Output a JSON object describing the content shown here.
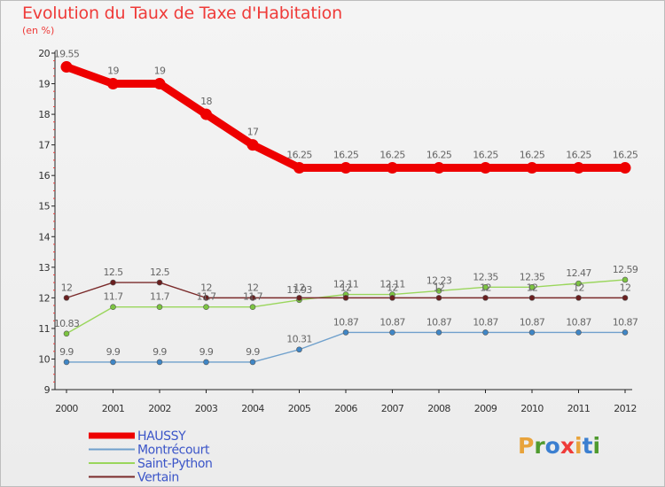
{
  "title": "Evolution du Taux de Taxe d'Habitation",
  "unit": "(en %)",
  "logo": {
    "text": "Proxiti",
    "colors": [
      "#e8a33b",
      "#4f9a2e",
      "#3b7fd0",
      "#ef3b39",
      "#e8a33b",
      "#3b7fd0",
      "#4f9a2e"
    ]
  },
  "chart_data": {
    "type": "line",
    "title": "Evolution du Taux de Taxe d'Habitation",
    "ylabel": "(en %)",
    "xlabel": "",
    "ylim": [
      9,
      20
    ],
    "y_ticks": [
      9,
      10,
      11,
      12,
      13,
      14,
      15,
      16,
      17,
      18,
      19,
      20
    ],
    "x": [
      "2000",
      "2001",
      "2002",
      "2003",
      "2004",
      "2005",
      "2006",
      "2007",
      "2008",
      "2009",
      "2010",
      "2011",
      "2012"
    ],
    "grid": false,
    "legend_position": "bottom-left",
    "series": [
      {
        "name": "HAUSSY",
        "color": "#ee0000",
        "emphasis": true,
        "values": [
          19.55,
          19,
          19,
          18,
          17,
          16.25,
          16.25,
          16.25,
          16.25,
          16.25,
          16.25,
          16.25,
          16.25
        ],
        "labels": [
          "19.55",
          "19",
          "19",
          "18",
          "17",
          "16.25",
          "16.25",
          "16.25",
          "16.25",
          "16.25",
          "16.25",
          "16.25",
          "16.25"
        ]
      },
      {
        "name": "Montrécourt",
        "color": "#6fa0cc",
        "marker": "#3f86c6",
        "values": [
          9.9,
          9.9,
          9.9,
          9.9,
          9.9,
          10.31,
          10.87,
          10.87,
          10.87,
          10.87,
          10.87,
          10.87,
          10.87
        ],
        "labels": [
          "9.9",
          "9.9",
          "9.9",
          "9.9",
          "9.9",
          "10.31",
          "10.87",
          "10.87",
          "10.87",
          "10.87",
          "10.87",
          "10.87",
          "10.87"
        ]
      },
      {
        "name": "Saint-Python",
        "color": "#9ad65c",
        "marker": "#7cc441",
        "values": [
          10.83,
          11.7,
          11.7,
          11.7,
          11.7,
          11.93,
          12.11,
          12.11,
          12.23,
          12.35,
          12.35,
          12.47,
          12.59
        ],
        "labels": [
          "10.83",
          "11.7",
          "11.7",
          "11.7",
          "11.7",
          "11.93",
          "12.11",
          "12.11",
          "12.23",
          "12.35",
          "12.35",
          "12.47",
          "12.59"
        ]
      },
      {
        "name": "Vertain",
        "color": "#7a2a2a",
        "marker": "#6a1f1f",
        "values": [
          12,
          12.5,
          12.5,
          12,
          12,
          12,
          12,
          12,
          12,
          12,
          12,
          12,
          12
        ],
        "labels": [
          "12",
          "12.5",
          "12.5",
          "12",
          "12",
          "12",
          "12",
          "12",
          "12",
          "12",
          "12",
          "12",
          "12"
        ]
      }
    ]
  }
}
